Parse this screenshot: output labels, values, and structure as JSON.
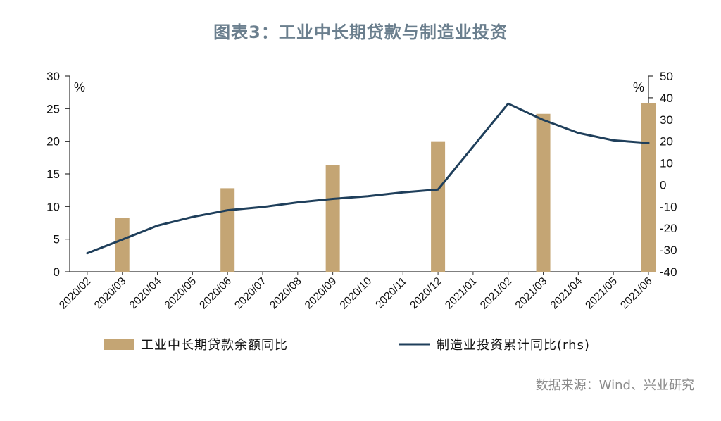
{
  "title": "图表3：工业中长期贷款与制造业投资",
  "source": "数据来源：Wind、兴业研究",
  "colors": {
    "bar": "#c4a574",
    "line": "#1f3f5b",
    "axis": "#333333",
    "title": "#6b7f8e"
  },
  "chart_data": {
    "type": "bar+line",
    "categories": [
      "2020/02",
      "2020/03",
      "2020/04",
      "2020/05",
      "2020/06",
      "2020/07",
      "2020/08",
      "2020/09",
      "2020/10",
      "2020/11",
      "2020/12",
      "2021/01",
      "2021/02",
      "2021/03",
      "2021/04",
      "2021/05",
      "2021/06"
    ],
    "left_axis": {
      "unit": "%",
      "ylim": [
        0,
        30
      ],
      "ticks": [
        0,
        5,
        10,
        15,
        20,
        25,
        30
      ]
    },
    "right_axis": {
      "unit": "%",
      "ylim": [
        -40,
        50
      ],
      "ticks": [
        -40,
        -30,
        -20,
        -10,
        0,
        10,
        20,
        30,
        40,
        50
      ]
    },
    "series": [
      {
        "name": "工业中长期贷款余额同比",
        "type": "bar",
        "axis": "left",
        "values": [
          null,
          8.3,
          null,
          null,
          12.8,
          null,
          null,
          16.3,
          null,
          null,
          20.0,
          null,
          null,
          24.2,
          null,
          null,
          25.8
        ]
      },
      {
        "name": "制造业投资累计同比(rhs)",
        "type": "line",
        "axis": "right",
        "values": [
          -31.5,
          -25.2,
          -18.8,
          -14.8,
          -11.7,
          -10.2,
          -8.1,
          -6.5,
          -5.3,
          -3.5,
          -2.2,
          null,
          37.3,
          29.8,
          23.8,
          20.4,
          19.2
        ]
      }
    ],
    "legend_position": "bottom",
    "grid": false
  }
}
